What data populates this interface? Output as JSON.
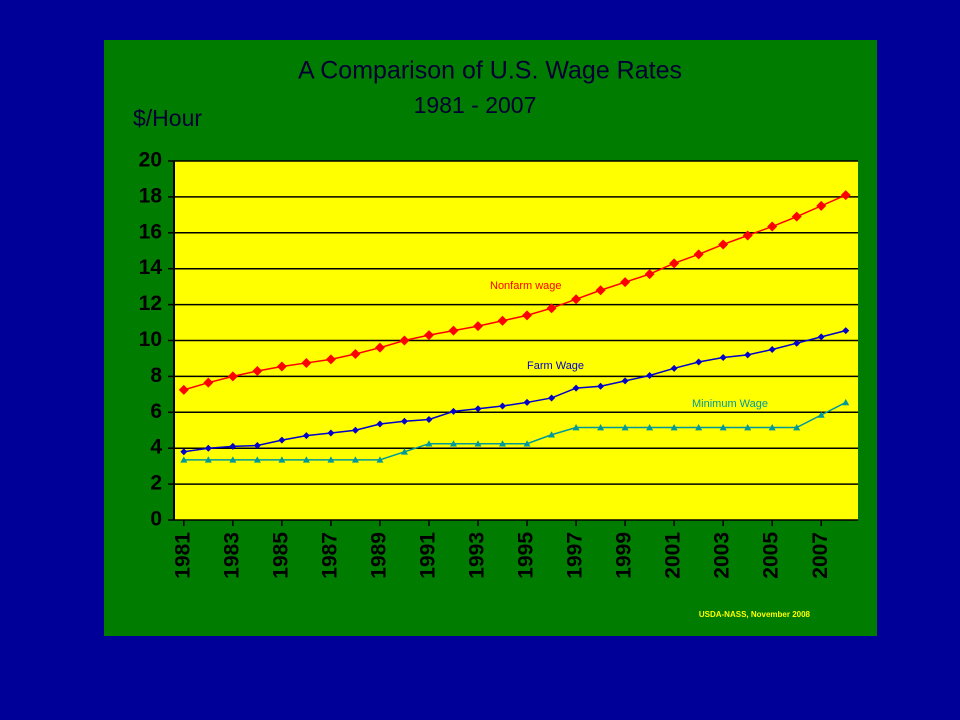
{
  "chart_data": {
    "type": "line",
    "title": "A Comparison of U.S. Wage Rates",
    "subtitle": "1981 - 2007",
    "y_label": "$/Hour",
    "source": "USDA-NASS, November 2008",
    "x": [
      1981,
      1982,
      1983,
      1984,
      1985,
      1986,
      1987,
      1988,
      1989,
      1990,
      1991,
      1992,
      1993,
      1994,
      1995,
      1996,
      1997,
      1998,
      1999,
      2000,
      2001,
      2002,
      2003,
      2004,
      2005,
      2006,
      2007,
      2008
    ],
    "xlim": [
      1980.6,
      2008.5
    ],
    "xticks": [
      1981,
      1983,
      1985,
      1987,
      1989,
      1991,
      1993,
      1995,
      1997,
      1999,
      2001,
      2003,
      2005,
      2007
    ],
    "ylim": [
      0,
      20
    ],
    "yticks": [
      0,
      2,
      4,
      6,
      8,
      10,
      12,
      14,
      16,
      18,
      20
    ],
    "grid": true,
    "series": [
      {
        "name": "Nonfarm wage",
        "color": "#ff0000",
        "marker": "diamond",
        "values": [
          7.25,
          7.65,
          8.0,
          8.3,
          8.55,
          8.75,
          8.95,
          9.25,
          9.6,
          10.0,
          10.3,
          10.55,
          10.8,
          11.1,
          11.4,
          11.8,
          12.3,
          12.8,
          13.25,
          13.7,
          14.3,
          14.8,
          15.35,
          15.85,
          16.35,
          16.9,
          17.5,
          18.1
        ]
      },
      {
        "name": "Farm Wage",
        "color": "#0000cc",
        "marker": "diamond",
        "values": [
          3.8,
          4.0,
          4.1,
          4.15,
          4.45,
          4.7,
          4.85,
          5.0,
          5.35,
          5.5,
          5.6,
          6.05,
          6.2,
          6.35,
          6.55,
          6.8,
          7.35,
          7.45,
          7.75,
          8.05,
          8.45,
          8.8,
          9.05,
          9.2,
          9.5,
          9.85,
          10.2,
          10.55
        ]
      },
      {
        "name": "Minimum Wage",
        "color": "#009999",
        "marker": "triangle",
        "values": [
          3.35,
          3.35,
          3.35,
          3.35,
          3.35,
          3.35,
          3.35,
          3.35,
          3.35,
          3.8,
          4.25,
          4.25,
          4.25,
          4.25,
          4.25,
          4.75,
          5.15,
          5.15,
          5.15,
          5.15,
          5.15,
          5.15,
          5.15,
          5.15,
          5.15,
          5.15,
          5.85,
          6.55
        ]
      }
    ]
  }
}
